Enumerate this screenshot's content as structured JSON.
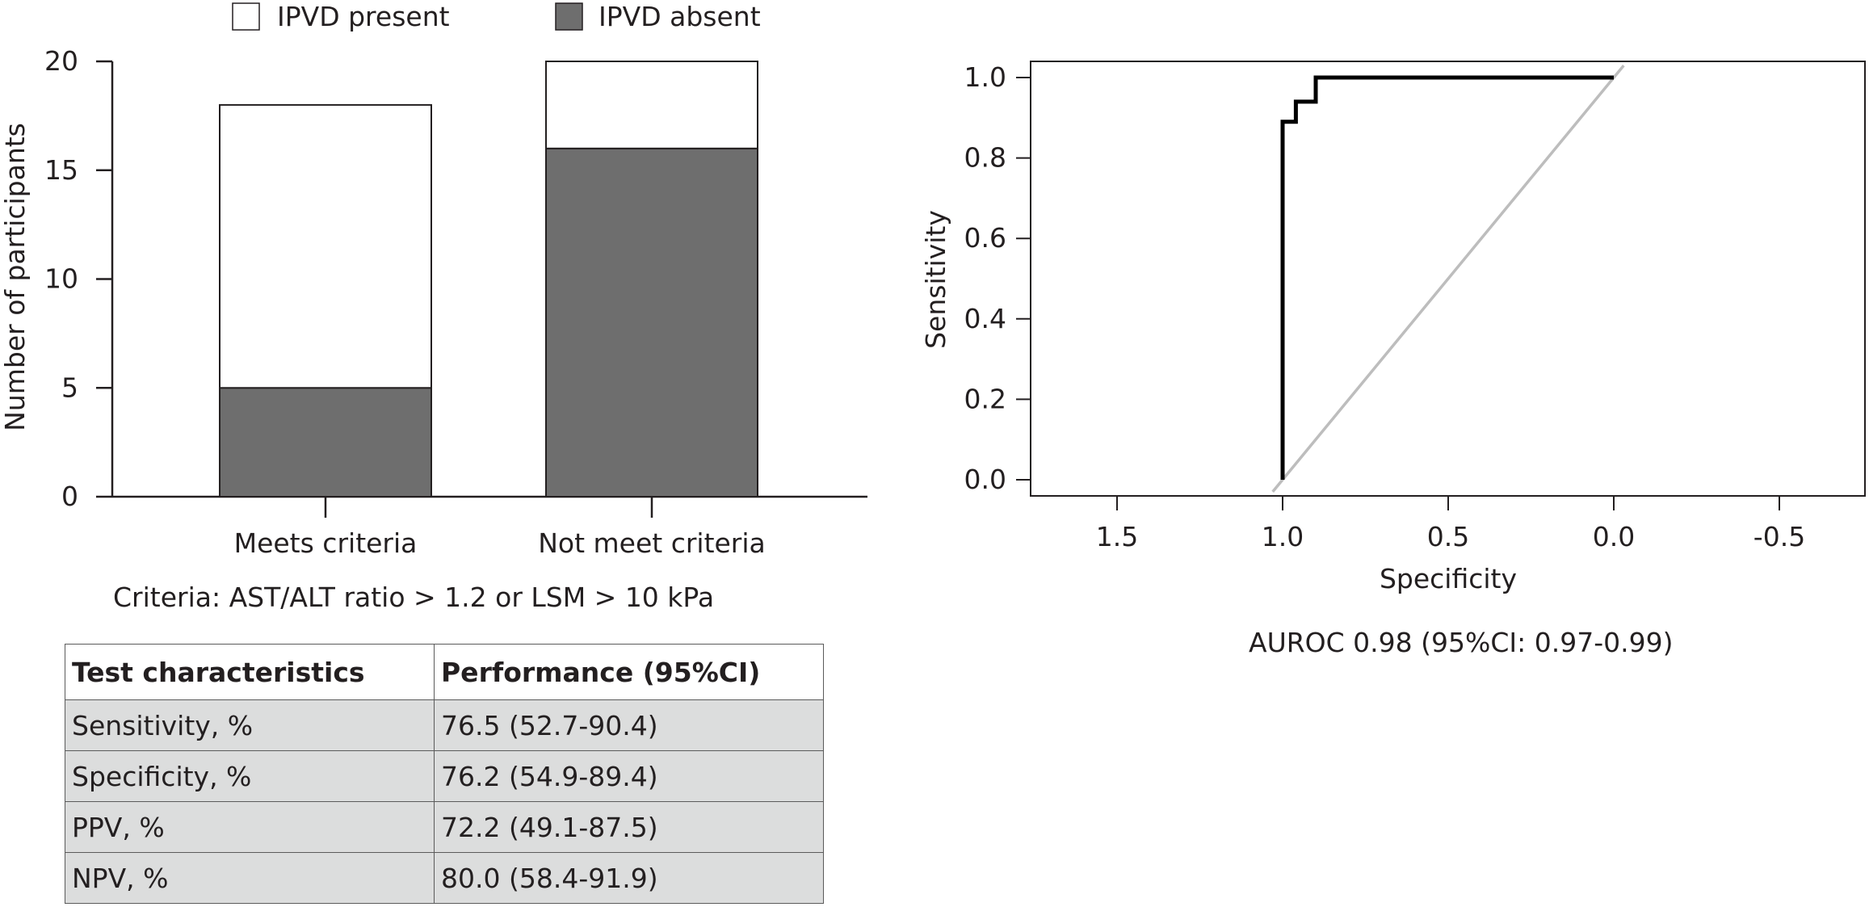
{
  "chart_data": [
    {
      "type": "bar",
      "stacked": true,
      "categories": [
        "Meets criteria",
        "Not meet criteria"
      ],
      "series": [
        {
          "name": "IPVD absent",
          "values": [
            5,
            16
          ],
          "color": "#6e6e6e"
        },
        {
          "name": "IPVD present",
          "values": [
            13,
            4
          ],
          "color": "#ffffff"
        }
      ],
      "ylabel": "Number of participants",
      "xlabel": "",
      "ylim": [
        0,
        20
      ],
      "yticks": [
        0,
        5,
        10,
        15,
        20
      ],
      "legend": "top",
      "grid": false
    },
    {
      "type": "line",
      "title": "",
      "xlabel": "Specificity",
      "ylabel": "Sensitivity",
      "xlim": [
        1.75,
        -0.75
      ],
      "ylim": [
        0.0,
        1.0
      ],
      "x_reversed": true,
      "xticks": [
        1.5,
        1.0,
        0.5,
        0.0,
        -0.5
      ],
      "xtick_labels": [
        "1.5",
        "1.0",
        "0.5",
        "0.0",
        "-0.5"
      ],
      "yticks": [
        0.0,
        0.2,
        0.4,
        0.6,
        0.8,
        1.0
      ],
      "ytick_labels": [
        "0.0",
        "0.2",
        "0.4",
        "0.6",
        "0.8",
        "1.0"
      ],
      "grid": false,
      "series": [
        {
          "name": "",
          "color": "#000000",
          "x": [
            1.0,
            1.0,
            0.96,
            0.96,
            0.9,
            0.9,
            0.0
          ],
          "y": [
            0.0,
            0.89,
            0.89,
            0.94,
            0.94,
            1.0,
            1.0
          ]
        },
        {
          "name": "",
          "color": "#bdbdbd",
          "x": [
            1.03,
            -0.03
          ],
          "y": [
            -0.03,
            1.03
          ]
        }
      ]
    }
  ],
  "legend": {
    "present": "IPVD present",
    "absent": "IPVD absent"
  },
  "criteria_text": "Criteria: AST/ALT ratio > 1.2 or LSM > 10 kPa",
  "auroc_text": "AUROC 0.98 (95%CI: 0.97-0.99)",
  "table": {
    "headers": [
      "Test characteristics",
      "Performance (95%CI)"
    ],
    "rows": [
      [
        "Sensitivity, %",
        "76.5 (52.7-90.4)"
      ],
      [
        "Specificity, %",
        "76.2 (54.9-89.4)"
      ],
      [
        "PPV, %",
        "72.2 (49.1-87.5)"
      ],
      [
        "NPV, %",
        "80.0 (58.4-91.9)"
      ]
    ]
  }
}
